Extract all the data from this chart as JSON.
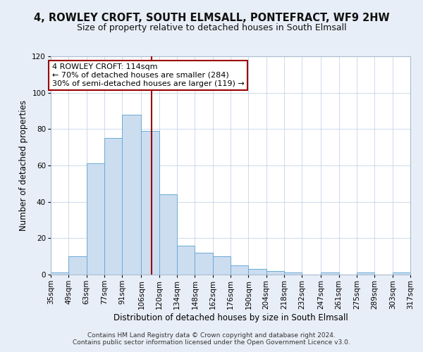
{
  "title": "4, ROWLEY CROFT, SOUTH ELMSALL, PONTEFRACT, WF9 2HW",
  "subtitle": "Size of property relative to detached houses in South Elmsall",
  "xlabel": "Distribution of detached houses by size in South Elmsall",
  "ylabel": "Number of detached properties",
  "bin_edges": [
    35,
    49,
    63,
    77,
    91,
    106,
    120,
    134,
    148,
    162,
    176,
    190,
    204,
    218,
    232,
    247,
    261,
    275,
    289,
    303,
    317
  ],
  "bin_counts": [
    1,
    10,
    61,
    75,
    88,
    79,
    44,
    16,
    12,
    10,
    5,
    3,
    2,
    1,
    0,
    1,
    0,
    1,
    0,
    1
  ],
  "tick_labels": [
    "35sqm",
    "49sqm",
    "63sqm",
    "77sqm",
    "91sqm",
    "106sqm",
    "120sqm",
    "134sqm",
    "148sqm",
    "162sqm",
    "176sqm",
    "190sqm",
    "204sqm",
    "218sqm",
    "232sqm",
    "247sqm",
    "261sqm",
    "275sqm",
    "289sqm",
    "303sqm",
    "317sqm"
  ],
  "ylim": [
    0,
    120
  ],
  "yticks": [
    0,
    20,
    40,
    60,
    80,
    100,
    120
  ],
  "bar_fill": "#ccddf0",
  "bar_edge": "#6aaad4",
  "vline_x": 114,
  "vline_color": "#990000",
  "ann_line1": "4 ROWLEY CROFT: 114sqm",
  "ann_line2": "← 70% of detached houses are smaller (284)",
  "ann_line3": "30% of semi-detached houses are larger (119) →",
  "footer1": "Contains HM Land Registry data © Crown copyright and database right 2024.",
  "footer2": "Contains public sector information licensed under the Open Government Licence v3.0.",
  "bg_color": "#e8eef7",
  "plot_bg_color": "#ffffff",
  "title_fontsize": 10.5,
  "subtitle_fontsize": 9,
  "axis_label_fontsize": 8.5,
  "tick_fontsize": 7.5,
  "ann_fontsize": 8,
  "footer_fontsize": 6.5
}
